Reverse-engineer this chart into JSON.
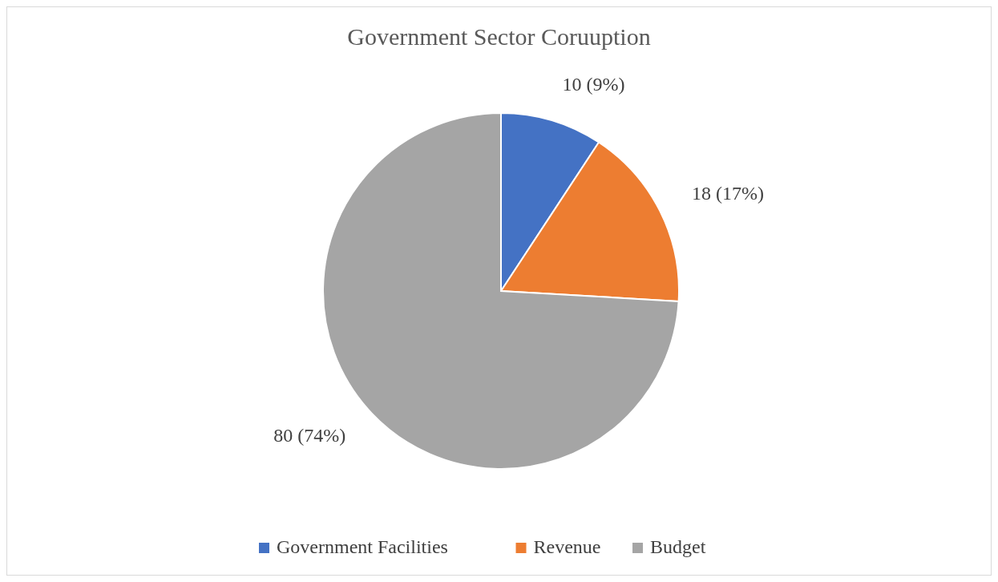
{
  "chart_data": {
    "type": "pie",
    "title": "Government Sector Coruuption",
    "categories": [
      "Government Facilities",
      "Revenue",
      "Budget"
    ],
    "values": [
      10,
      18,
      80
    ],
    "colors": [
      "#4472c4",
      "#ed7d31",
      "#a5a5a5"
    ],
    "value_labels": [
      "10 (9%)",
      "18 (17%)",
      "80 (74%)"
    ],
    "legend": "bottom"
  }
}
